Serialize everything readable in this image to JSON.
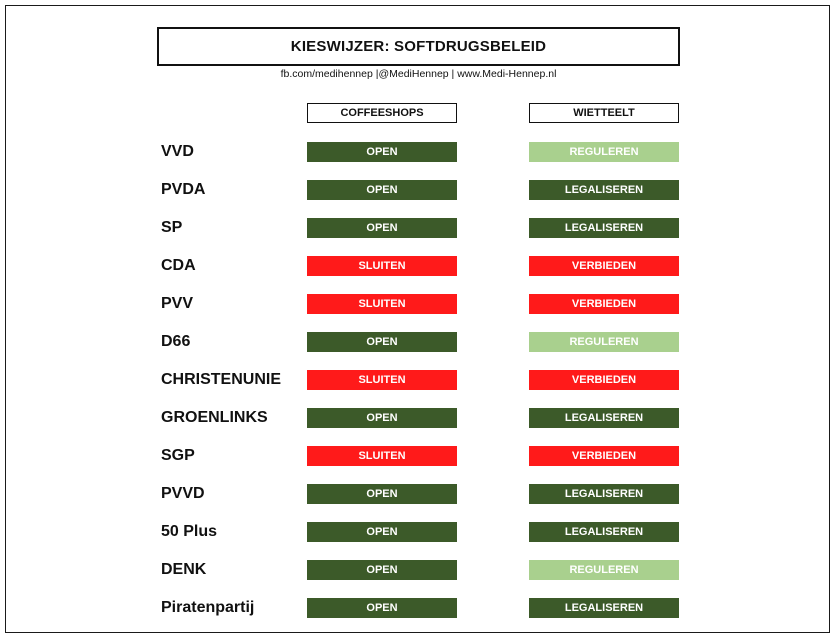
{
  "title": "KIESWIJZER: SOFTDRUGSBELEID",
  "subtitle": "fb.com/medihennep |@MediHennep | www.Medi-Hennep.nl",
  "columns": {
    "coffeeshops": "COFFEESHOPS",
    "wietteelt": "WIETTEELT"
  },
  "status_colors": {
    "OPEN": "#3c5a29",
    "SLUITEN": "#ff1a1a",
    "REGULEREN": "#a9d08e",
    "LEGALISEREN": "#3c5a29",
    "VERBIEDEN": "#ff1a1a"
  },
  "rows": [
    {
      "party": "VVD",
      "coffeeshops": "OPEN",
      "wietteelt": "REGULEREN"
    },
    {
      "party": "PVDA",
      "coffeeshops": "OPEN",
      "wietteelt": "LEGALISEREN"
    },
    {
      "party": "SP",
      "coffeeshops": "OPEN",
      "wietteelt": "LEGALISEREN"
    },
    {
      "party": "CDA",
      "coffeeshops": "SLUITEN",
      "wietteelt": "VERBIEDEN"
    },
    {
      "party": "PVV",
      "coffeeshops": "SLUITEN",
      "wietteelt": "VERBIEDEN"
    },
    {
      "party": "D66",
      "coffeeshops": "OPEN",
      "wietteelt": "REGULEREN"
    },
    {
      "party": "CHRISTENUNIE",
      "coffeeshops": "SLUITEN",
      "wietteelt": "VERBIEDEN"
    },
    {
      "party": "GROENLINKS",
      "coffeeshops": "OPEN",
      "wietteelt": "LEGALISEREN"
    },
    {
      "party": "SGP",
      "coffeeshops": "SLUITEN",
      "wietteelt": "VERBIEDEN"
    },
    {
      "party": "PVVD",
      "coffeeshops": "OPEN",
      "wietteelt": "LEGALISEREN"
    },
    {
      "party": "50 Plus",
      "coffeeshops": "OPEN",
      "wietteelt": "LEGALISEREN"
    },
    {
      "party": "DENK",
      "coffeeshops": "OPEN",
      "wietteelt": "REGULEREN"
    },
    {
      "party": "Piratenpartij",
      "coffeeshops": "OPEN",
      "wietteelt": "LEGALISEREN"
    }
  ]
}
